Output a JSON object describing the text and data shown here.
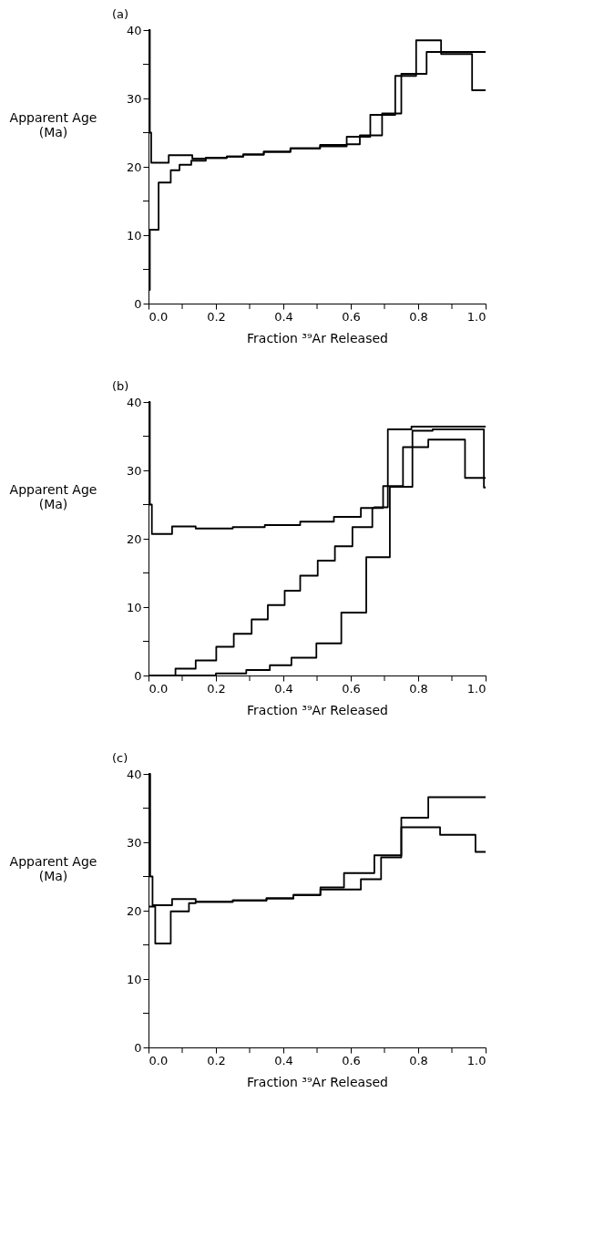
{
  "chart_data": [
    {
      "type": "step",
      "title": "(a)",
      "xlabel": "Fraction ³⁹Ar Released",
      "ylabel": "Apparent Age\n(Ma)",
      "xlim": [
        0,
        1
      ],
      "ylim": [
        0,
        40
      ],
      "xticks": [
        {
          "value": 0,
          "label": "0.0"
        },
        {
          "value": 0.1,
          "label": null
        },
        {
          "value": 0.2,
          "label": "0.2"
        },
        {
          "value": 0.3,
          "label": null
        },
        {
          "value": 0.4,
          "label": "0.4"
        },
        {
          "value": 0.5,
          "label": null
        },
        {
          "value": 0.6,
          "label": "0.6"
        },
        {
          "value": 0.7,
          "label": null
        },
        {
          "value": 0.8,
          "label": "0.8"
        },
        {
          "value": 0.9,
          "label": null
        },
        {
          "value": 1,
          "label": "1.0"
        }
      ],
      "yticks": [
        0,
        {
          "value": 5,
          "label": null
        },
        10,
        {
          "value": 15,
          "label": null
        },
        20,
        {
          "value": 25,
          "label": null
        },
        30,
        {
          "value": 35,
          "label": null
        },
        40
      ],
      "line_style": "solid",
      "series": [
        {
          "color": "#000000",
          "x": [
            0,
            0.004,
            0.008,
            0.06,
            0.13,
            0.17,
            0.232,
            0.281,
            0.342,
            0.421,
            0.509,
            0.588,
            0.658,
            0.732,
            0.794,
            0.868,
            0.96,
            1.0
          ],
          "values": [
            40,
            25,
            20.6,
            21.7,
            21.2,
            21.3,
            21.5,
            21.8,
            22.2,
            22.7,
            23.2,
            24.4,
            27.6,
            33.3,
            38.5,
            36.5,
            31.2,
            31.2
          ]
        },
        {
          "color": "#000000",
          "x": [
            0,
            0.004,
            0.03,
            0.066,
            0.092,
            0.127,
            0.17,
            0.232,
            0.281,
            0.342,
            0.421,
            0.509,
            0.588,
            0.627,
            0.693,
            0.75,
            0.825,
            1.0
          ],
          "values": [
            2,
            10.8,
            17.7,
            19.5,
            20.3,
            20.9,
            21.3,
            21.5,
            21.8,
            22.2,
            22.7,
            23.0,
            23.3,
            24.6,
            27.8,
            33.6,
            36.8,
            36.8
          ]
        }
      ]
    },
    {
      "type": "step",
      "title": "(b)",
      "xlabel": "Fraction ³⁹Ar Released",
      "ylabel": "Apparent Age\n(Ma)",
      "xlim": [
        0,
        1
      ],
      "ylim": [
        0,
        40
      ],
      "xticks": [
        {
          "value": 0,
          "label": "0.0"
        },
        {
          "value": 0.1,
          "label": null
        },
        {
          "value": 0.2,
          "label": "0.2"
        },
        {
          "value": 0.3,
          "label": null
        },
        {
          "value": 0.4,
          "label": "0.4"
        },
        {
          "value": 0.5,
          "label": null
        },
        {
          "value": 0.6,
          "label": "0.6"
        },
        {
          "value": 0.7,
          "label": null
        },
        {
          "value": 0.8,
          "label": "0.8"
        },
        {
          "value": 0.9,
          "label": null
        },
        {
          "value": 1,
          "label": "1.0"
        }
      ],
      "yticks": [
        0,
        {
          "value": 5,
          "label": null
        },
        10,
        {
          "value": 15,
          "label": null
        },
        20,
        {
          "value": 25,
          "label": null
        },
        30,
        {
          "value": 35,
          "label": null
        },
        40
      ],
      "line_style": "solid",
      "series": [
        {
          "color": "#000000",
          "x": [
            0,
            0.004,
            0.01,
            0.07,
            0.14,
            0.25,
            0.345,
            0.45,
            0.55,
            0.63,
            0.67,
            0.71,
            0.78,
            1.0
          ],
          "values": [
            40,
            25,
            20.7,
            21.8,
            21.5,
            21.7,
            22.0,
            22.5,
            23.2,
            24.5,
            24.6,
            36.0,
            36.4,
            36.4
          ]
        },
        {
          "color": "#000000",
          "x": [
            0,
            0.08,
            0.14,
            0.201,
            0.253,
            0.306,
            0.354,
            0.404,
            0.45,
            0.502,
            0.553,
            0.605,
            0.664,
            0.696,
            0.755,
            0.83,
            0.939,
            1.0
          ],
          "values": [
            0,
            1.0,
            2.2,
            4.2,
            6.1,
            8.2,
            10.3,
            12.4,
            14.6,
            16.8,
            18.9,
            21.7,
            24.5,
            27.7,
            33.4,
            34.5,
            28.9,
            28.9
          ]
        },
        {
          "color": "#000000",
          "x": [
            0,
            0.2,
            0.29,
            0.36,
            0.424,
            0.498,
            0.572,
            0.646,
            0.716,
            0.783,
            0.843,
            0.995,
            1.0
          ],
          "values": [
            0,
            0.3,
            0.8,
            1.5,
            2.6,
            4.7,
            9.2,
            17.3,
            27.6,
            35.8,
            36.0,
            27.5,
            27.5
          ]
        }
      ]
    },
    {
      "type": "step",
      "title": "(c)",
      "xlabel": "Fraction ³⁹Ar Released",
      "ylabel": "Apparent Age\n(Ma)",
      "xlim": [
        0,
        1
      ],
      "ylim": [
        0,
        40
      ],
      "xticks": [
        {
          "value": 0,
          "label": "0.0"
        },
        {
          "value": 0.1,
          "label": null
        },
        {
          "value": 0.2,
          "label": "0.2"
        },
        {
          "value": 0.3,
          "label": null
        },
        {
          "value": 0.4,
          "label": "0.4"
        },
        {
          "value": 0.5,
          "label": null
        },
        {
          "value": 0.6,
          "label": "0.6"
        },
        {
          "value": 0.7,
          "label": null
        },
        {
          "value": 0.8,
          "label": "0.8"
        },
        {
          "value": 0.9,
          "label": null
        },
        {
          "value": 1,
          "label": "1.0"
        }
      ],
      "yticks": [
        0,
        {
          "value": 5,
          "label": null
        },
        10,
        {
          "value": 15,
          "label": null
        },
        20,
        {
          "value": 25,
          "label": null
        },
        30,
        {
          "value": 35,
          "label": null
        },
        40
      ],
      "line_style": "solid",
      "series": [
        {
          "color": "#000000",
          "x": [
            0,
            0.005,
            0.012,
            0.07,
            0.14,
            0.25,
            0.35,
            0.43,
            0.51,
            0.58,
            0.67,
            0.75,
            0.83,
            1.0
          ],
          "values": [
            40,
            25,
            20.8,
            21.7,
            21.3,
            21.5,
            21.8,
            22.3,
            23.4,
            25.5,
            28.1,
            33.6,
            36.6,
            36.6
          ]
        },
        {
          "color": "#000000",
          "x": [
            0,
            0.02,
            0.066,
            0.12,
            0.14,
            0.25,
            0.35,
            0.43,
            0.51,
            0.63,
            0.69,
            0.75,
            0.865,
            0.97,
            1.0
          ],
          "values": [
            20.6,
            15.2,
            19.9,
            21.1,
            21.3,
            21.5,
            21.8,
            22.3,
            23.1,
            24.6,
            27.8,
            32.2,
            31.1,
            28.6,
            28.6
          ]
        }
      ]
    }
  ]
}
